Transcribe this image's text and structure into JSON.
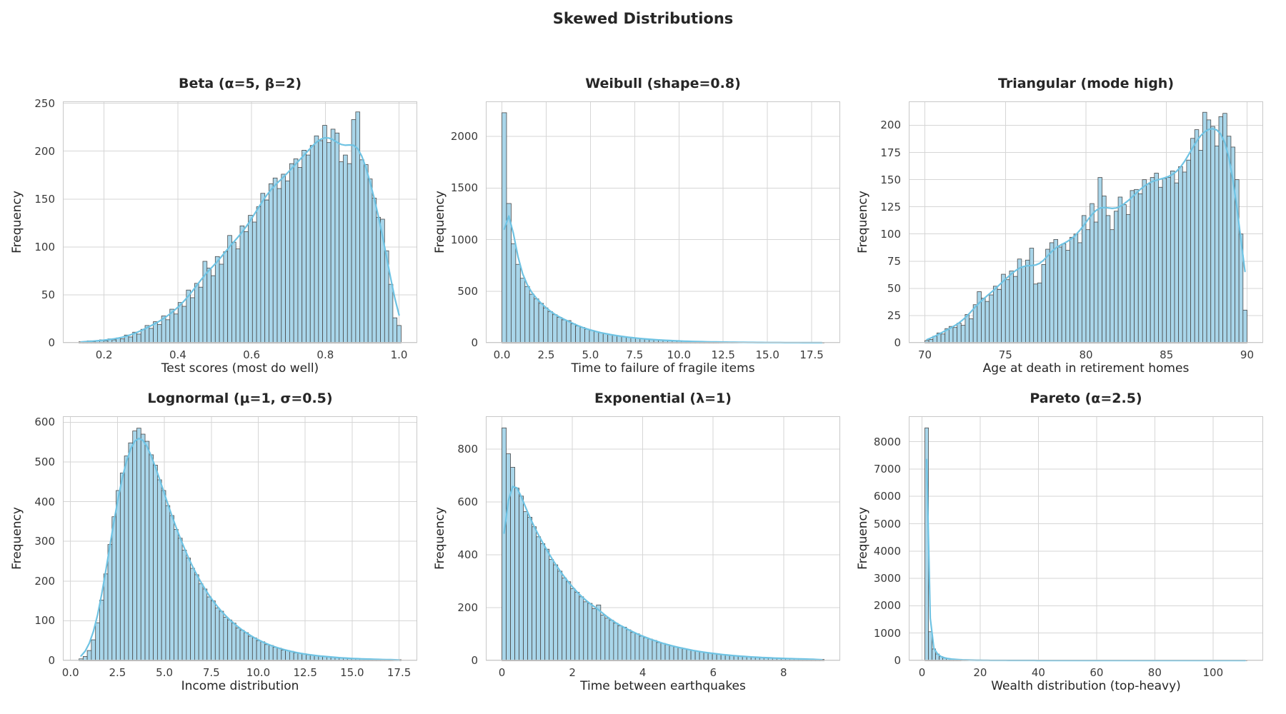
{
  "figure": {
    "title": "Skewed Distributions",
    "ylabel": "Frequency",
    "background": "#ffffff",
    "bar_fill": "#a9d6ea",
    "bar_edge": "#4a4a4a",
    "kde_color": "#6fc3e3",
    "grid_color": "#d6d6d6",
    "spine_color": "#c8c8c8",
    "text_color": "#262626"
  },
  "chart_data": [
    {
      "type": "bar",
      "subtype": "histogram-with-kde",
      "title": "Beta (α=5, β=2)",
      "xlabel": "Test scores (most do well)",
      "ylabel": "Frequency",
      "xlim": [
        0.0883,
        1.0493
      ],
      "ylim": [
        0,
        252
      ],
      "xtick_values": [
        0.2,
        0.4,
        0.6,
        0.8,
        1.0
      ],
      "xtick_labels": [
        "0.2",
        "0.4",
        "0.6",
        "0.8",
        "1.0"
      ],
      "ytick_values": [
        0,
        50,
        100,
        150,
        200,
        250
      ],
      "ytick_labels": [
        "0",
        "50",
        "100",
        "150",
        "200",
        "250"
      ],
      "bin_start": 0.132,
      "bin_width": 0.0112,
      "kde_sigma": 2.2,
      "counts": [
        1,
        1,
        2,
        1,
        2,
        3,
        2,
        4,
        3,
        5,
        4,
        8,
        6,
        11,
        9,
        14,
        18,
        15,
        22,
        19,
        28,
        24,
        35,
        30,
        42,
        38,
        55,
        47,
        62,
        58,
        85,
        78,
        70,
        90,
        82,
        95,
        112,
        105,
        98,
        122,
        116,
        133,
        126,
        142,
        156,
        149,
        166,
        172,
        161,
        176,
        169,
        187,
        192,
        183,
        201,
        196,
        206,
        216,
        211,
        227,
        209,
        223,
        219,
        189,
        196,
        187,
        233,
        241,
        191,
        186,
        171,
        151,
        131,
        129,
        96,
        61,
        26,
        18
      ]
    },
    {
      "type": "bar",
      "subtype": "histogram-with-kde",
      "title": "Weibull (shape=0.8)",
      "xlabel": "Time to failure of fragile items",
      "ylabel": "Frequency",
      "xlim": [
        -0.91,
        19.11
      ],
      "ylim": [
        0,
        2340
      ],
      "xtick_values": [
        0.0,
        2.5,
        5.0,
        7.5,
        10.0,
        12.5,
        15.0,
        17.5
      ],
      "xtick_labels": [
        "0.0",
        "2.5",
        "5.0",
        "7.5",
        "10.0",
        "12.5",
        "15.0",
        "17.5"
      ],
      "ytick_values": [
        0,
        500,
        1000,
        1500,
        2000
      ],
      "ytick_labels": [
        "0",
        "500",
        "1000",
        "1500",
        "2000"
      ],
      "bin_start": 0.0,
      "bin_width": 0.26,
      "kde_sigma": 1.3,
      "counts": [
        2230,
        1350,
        960,
        760,
        625,
        545,
        470,
        425,
        382,
        338,
        302,
        272,
        246,
        222,
        215,
        183,
        162,
        149,
        131,
        119,
        108,
        96,
        88,
        79,
        72,
        65,
        58,
        53,
        48,
        43,
        39,
        35,
        32,
        29,
        26,
        23,
        21,
        19,
        17,
        15,
        14,
        12,
        11,
        10,
        9,
        8,
        8,
        7,
        6,
        6,
        5,
        5,
        4,
        4,
        3,
        3,
        3,
        2,
        2,
        2,
        2,
        1,
        2,
        1,
        1,
        1,
        1,
        0,
        1,
        1
      ]
    },
    {
      "type": "bar",
      "subtype": "histogram-with-kde",
      "title": "Triangular (mode high)",
      "xlabel": "Age at death in retirement homes",
      "ylabel": "Frequency",
      "xlim": [
        69,
        91
      ],
      "ylim": [
        0,
        222
      ],
      "xtick_values": [
        70,
        75,
        80,
        85,
        90
      ],
      "xtick_labels": [
        "70",
        "75",
        "80",
        "85",
        "90"
      ],
      "ytick_values": [
        0,
        25,
        50,
        75,
        100,
        125,
        150,
        175,
        200
      ],
      "ytick_labels": [
        "0",
        "25",
        "50",
        "75",
        "100",
        "125",
        "150",
        "175",
        "200"
      ],
      "bin_start": 70.0,
      "bin_width": 0.25,
      "kde_sigma": 2.4,
      "counts": [
        2,
        3,
        6,
        9,
        8,
        13,
        15,
        14,
        18,
        16,
        26,
        22,
        35,
        47,
        41,
        38,
        44,
        52,
        49,
        63,
        58,
        66,
        61,
        77,
        70,
        76,
        87,
        54,
        55,
        72,
        86,
        92,
        95,
        88,
        91,
        85,
        97,
        100,
        92,
        117,
        104,
        128,
        111,
        152,
        135,
        117,
        104,
        121,
        134,
        127,
        118,
        140,
        141,
        137,
        150,
        146,
        152,
        156,
        143,
        151,
        152,
        158,
        147,
        162,
        157,
        168,
        188,
        196,
        177,
        212,
        205,
        199,
        181,
        208,
        211,
        190,
        180,
        150,
        100,
        30
      ]
    },
    {
      "type": "bar",
      "subtype": "histogram-with-kde",
      "title": "Lognormal (μ=1, σ=0.5)",
      "xlabel": "Income distribution",
      "ylabel": "Frequency",
      "xlim": [
        -0.408,
        18.468
      ],
      "ylim": [
        0,
        615
      ],
      "xtick_values": [
        0.0,
        2.5,
        5.0,
        7.5,
        10.0,
        12.5,
        15.0,
        17.5
      ],
      "xtick_labels": [
        "0.0",
        "2.5",
        "5.0",
        "7.5",
        "10.0",
        "12.5",
        "15.0",
        "17.5"
      ],
      "ytick_values": [
        0,
        100,
        200,
        300,
        400,
        500,
        600
      ],
      "ytick_labels": [
        "0",
        "100",
        "200",
        "300",
        "400",
        "500",
        "600"
      ],
      "bin_start": 0.45,
      "bin_width": 0.22,
      "kde_sigma": 1.8,
      "counts": [
        4,
        10,
        25,
        52,
        95,
        152,
        218,
        292,
        362,
        428,
        472,
        515,
        548,
        578,
        585,
        570,
        552,
        518,
        492,
        455,
        428,
        390,
        365,
        330,
        308,
        278,
        258,
        232,
        216,
        193,
        180,
        160,
        150,
        132,
        124,
        109,
        102,
        94,
        82,
        76,
        70,
        61,
        57,
        50,
        47,
        40,
        38,
        33,
        31,
        26,
        25,
        23,
        19,
        18,
        17,
        14,
        13,
        12,
        11,
        10,
        9,
        8,
        7,
        7,
        6,
        5,
        5,
        4,
        4,
        4,
        3,
        3,
        3,
        2,
        2,
        2,
        2,
        2
      ]
    },
    {
      "type": "bar",
      "subtype": "histogram-with-kde",
      "title": "Exponential (λ=1)",
      "xlabel": "Time between earthquakes",
      "ylabel": "Frequency",
      "xlim": [
        -0.4575,
        9.6075
      ],
      "ylim": [
        0,
        924
      ],
      "xtick_values": [
        0,
        2,
        4,
        6,
        8
      ],
      "xtick_labels": [
        "0",
        "2",
        "4",
        "6",
        "8"
      ],
      "ytick_values": [
        0,
        200,
        400,
        600,
        800
      ],
      "ytick_labels": [
        "0",
        "200",
        "400",
        "600",
        "800"
      ],
      "bin_start": 0.0,
      "bin_width": 0.122,
      "kde_sigma": 1.8,
      "counts": [
        880,
        782,
        731,
        652,
        622,
        563,
        542,
        506,
        468,
        442,
        421,
        382,
        362,
        338,
        312,
        298,
        272,
        258,
        241,
        222,
        216,
        196,
        210,
        172,
        160,
        152,
        141,
        131,
        126,
        116,
        106,
        101,
        92,
        86,
        81,
        76,
        68,
        65,
        60,
        55,
        51,
        48,
        44,
        41,
        38,
        35,
        32,
        30,
        28,
        26,
        24,
        22,
        20,
        19,
        17,
        16,
        15,
        14,
        13,
        12,
        11,
        10,
        10,
        9,
        8,
        8,
        7,
        7,
        6,
        6,
        5,
        5,
        5,
        4,
        4
      ]
    },
    {
      "type": "bar",
      "subtype": "histogram-with-kde",
      "title": "Pareto (α=2.5)",
      "xlabel": "Wealth distribution (top-heavy)",
      "ylabel": "Frequency",
      "xlim": [
        -4.535,
        117.235
      ],
      "ylim": [
        0,
        8930
      ],
      "xtick_values": [
        0,
        20,
        40,
        60,
        80,
        100
      ],
      "xtick_labels": [
        "0",
        "20",
        "40",
        "60",
        "80",
        "100"
      ],
      "ytick_values": [
        0,
        1000,
        2000,
        3000,
        4000,
        5000,
        6000,
        7000,
        8000
      ],
      "ytick_labels": [
        "0",
        "1000",
        "2000",
        "3000",
        "4000",
        "5000",
        "6000",
        "7000",
        "8000"
      ],
      "bin_start": 1.0,
      "bin_width": 1.23,
      "kde_sigma": 0.45,
      "counts": [
        8505,
        1050,
        420,
        235,
        140,
        95,
        68,
        50,
        39,
        30,
        24,
        20,
        16,
        14,
        11,
        10,
        8,
        7,
        6,
        5,
        5,
        4,
        4,
        3,
        3,
        3,
        2,
        2,
        2,
        2,
        2,
        1,
        1,
        1,
        1,
        1,
        1,
        1,
        1,
        0,
        1,
        0,
        1,
        0,
        0,
        1,
        0,
        0,
        1,
        0,
        0,
        0,
        1,
        0,
        0,
        0,
        0,
        1,
        0,
        0,
        0,
        0,
        0,
        1,
        0,
        0,
        0,
        0,
        0,
        0,
        0,
        0,
        0,
        0,
        0,
        0,
        1,
        0,
        0,
        0,
        0,
        0,
        0,
        0,
        0,
        0,
        0,
        0,
        0,
        1
      ]
    }
  ]
}
